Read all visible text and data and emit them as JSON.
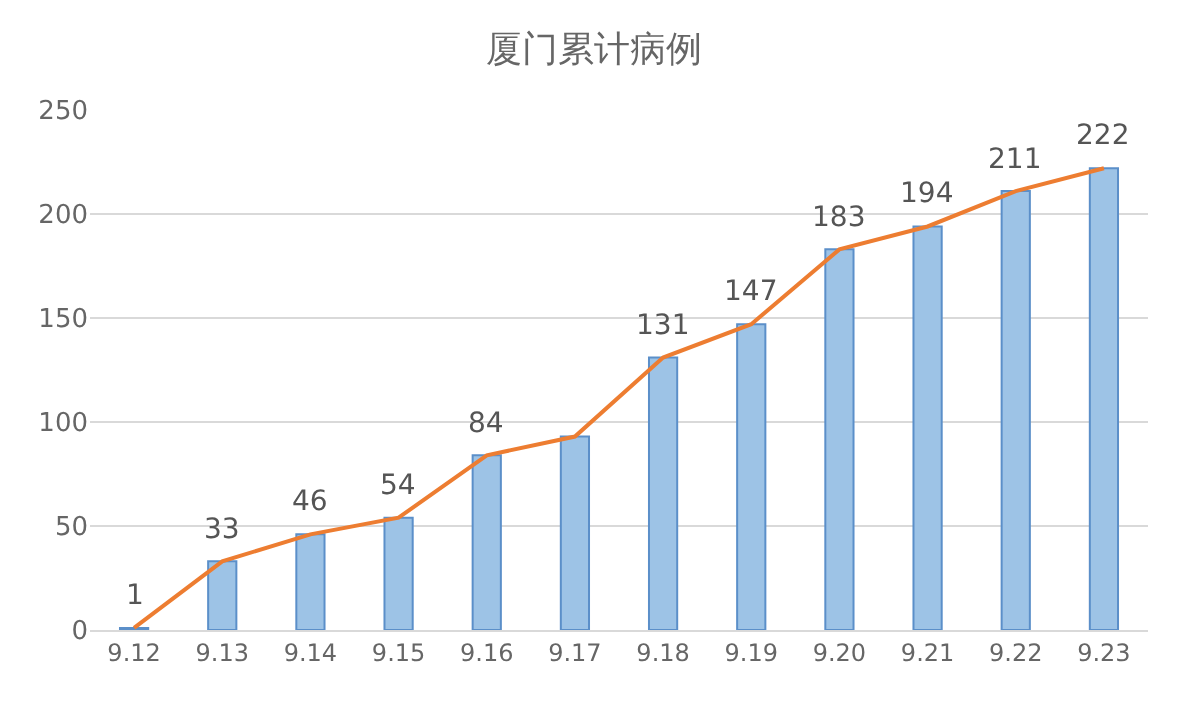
{
  "chart_data": {
    "type": "bar",
    "title": "厦门累计病例",
    "categories": [
      "9.12",
      "9.13",
      "9.14",
      "9.15",
      "9.16",
      "9.17",
      "9.18",
      "9.19",
      "9.20",
      "9.21",
      "9.22",
      "9.23"
    ],
    "series": [
      {
        "color": "#9dc3e6",
        "values": [
          1,
          33,
          46,
          54,
          84,
          93,
          131,
          147,
          183,
          194,
          211,
          222
        ],
        "value_labels": [
          "1",
          "33",
          "46",
          "54",
          "84",
          null,
          "131",
          "147",
          "183",
          "194",
          "211",
          "222"
        ]
      },
      {
        "type": "line",
        "color": "#ed7d31",
        "values": [
          1,
          33,
          46,
          54,
          84,
          93,
          131,
          147,
          183,
          194,
          211,
          222
        ]
      }
    ],
    "ylim": [
      0,
      250
    ],
    "yticks": [
      0,
      50,
      100,
      150,
      200,
      250
    ],
    "grid": "y",
    "marker": "none",
    "line_style": "solid"
  }
}
